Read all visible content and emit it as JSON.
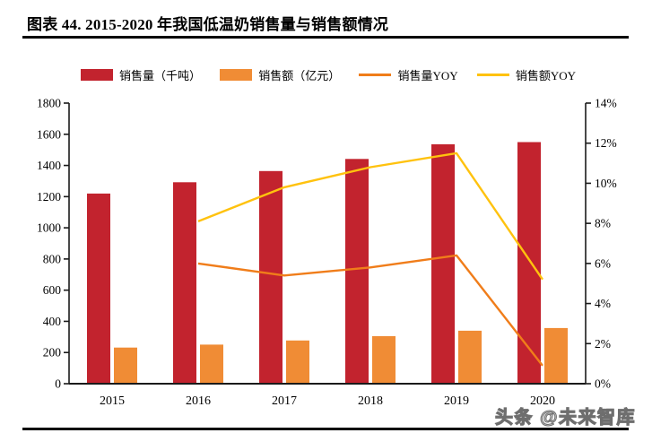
{
  "header": {
    "title": "图表 44. 2015-2020 年我国低温奶销售量与销售额情况"
  },
  "watermark": "头条 @未来智库",
  "colors": {
    "red": "#c2232e",
    "orange": "#f08c35",
    "orange_line": "#f07d1a",
    "yellow": "#ffc20e",
    "axis": "#1a1a1a"
  },
  "legend": {
    "items": [
      {
        "label": "销售量（千吨）",
        "swatch": "bar",
        "color": "red"
      },
      {
        "label": "销售额（亿元）",
        "swatch": "bar",
        "color": "orange"
      },
      {
        "label": "销售量YOY",
        "swatch": "line",
        "color": "orange_line"
      },
      {
        "label": "销售额YOY",
        "swatch": "line",
        "color": "yellow"
      }
    ]
  },
  "chart_data": {
    "type": "combo",
    "title": "",
    "xlabel": "",
    "ylabel": "",
    "grid": false,
    "legend_position": "top",
    "categories": [
      "2015",
      "2016",
      "2017",
      "2018",
      "2019",
      "2020"
    ],
    "series": [
      {
        "id": "volume-bars",
        "name": "销售量（千吨）",
        "type": "bar",
        "axis": "left",
        "color": "red",
        "values": [
          1220,
          1292,
          1364,
          1442,
          1536,
          1550
        ]
      },
      {
        "id": "revenue-bars",
        "name": "销售额（亿元）",
        "type": "bar",
        "axis": "left",
        "color": "orange",
        "values": [
          232,
          251,
          277,
          305,
          340,
          357
        ]
      },
      {
        "id": "volume-yoy-line",
        "name": "销售量YOY",
        "type": "line",
        "axis": "right",
        "color": "orange_line",
        "values": [
          null,
          6.0,
          5.4,
          5.8,
          6.4,
          0.9
        ]
      },
      {
        "id": "revenue-yoy-line",
        "name": "销售额YOY",
        "type": "line",
        "axis": "right",
        "color": "yellow",
        "values": [
          null,
          8.1,
          9.8,
          10.8,
          11.5,
          5.2
        ]
      }
    ],
    "left_axis": {
      "min": 0,
      "max": 1800,
      "step": 200,
      "ticks": [
        "0",
        "200",
        "400",
        "600",
        "800",
        "1000",
        "1200",
        "1400",
        "1600",
        "1800"
      ]
    },
    "right_axis": {
      "min": 0,
      "max": 14,
      "step": 2,
      "ticks": [
        "0%",
        "2%",
        "4%",
        "6%",
        "8%",
        "10%",
        "12%",
        "14%"
      ]
    }
  }
}
